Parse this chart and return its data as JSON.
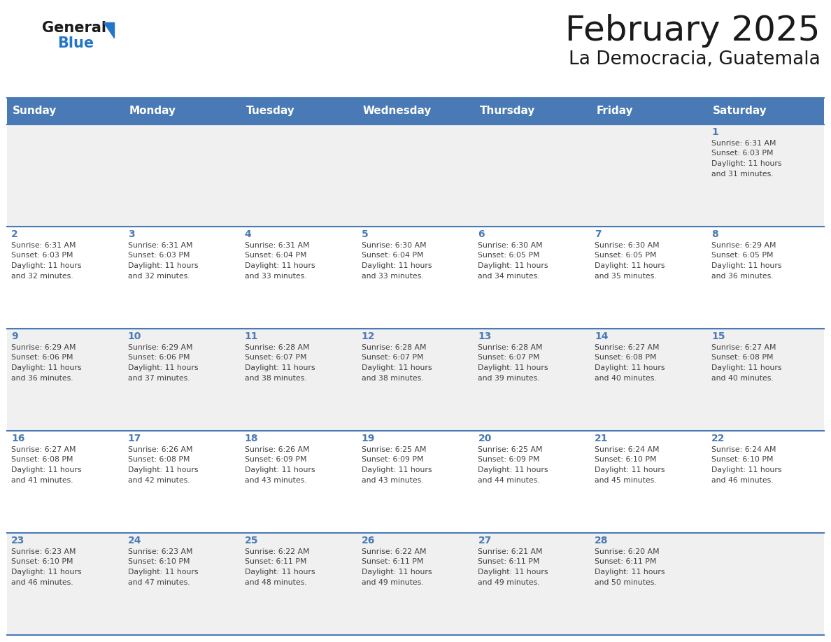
{
  "title": "February 2025",
  "subtitle": "La Democracia, Guatemala",
  "days_of_week": [
    "Sunday",
    "Monday",
    "Tuesday",
    "Wednesday",
    "Thursday",
    "Friday",
    "Saturday"
  ],
  "header_bg": "#4a7ab5",
  "header_text": "#ffffff",
  "cell_bg_odd": "#f0f0f0",
  "cell_bg_even": "#ffffff",
  "day_number_color": "#4a7ab5",
  "text_color": "#404040",
  "line_color": "#4a7ab5",
  "logo_general_color": "#1a1a1a",
  "logo_blue_color": "#2176c7",
  "logo_triangle_color": "#2176c7",
  "title_color": "#1a1a1a",
  "subtitle_color": "#1a1a1a",
  "calendar_data": [
    [
      {
        "day": null,
        "sunrise": null,
        "sunset": null,
        "daylight": null
      },
      {
        "day": null,
        "sunrise": null,
        "sunset": null,
        "daylight": null
      },
      {
        "day": null,
        "sunrise": null,
        "sunset": null,
        "daylight": null
      },
      {
        "day": null,
        "sunrise": null,
        "sunset": null,
        "daylight": null
      },
      {
        "day": null,
        "sunrise": null,
        "sunset": null,
        "daylight": null
      },
      {
        "day": null,
        "sunrise": null,
        "sunset": null,
        "daylight": null
      },
      {
        "day": 1,
        "sunrise": "6:31 AM",
        "sunset": "6:03 PM",
        "daylight": "11 hours and 31 minutes."
      }
    ],
    [
      {
        "day": 2,
        "sunrise": "6:31 AM",
        "sunset": "6:03 PM",
        "daylight": "11 hours and 32 minutes."
      },
      {
        "day": 3,
        "sunrise": "6:31 AM",
        "sunset": "6:03 PM",
        "daylight": "11 hours and 32 minutes."
      },
      {
        "day": 4,
        "sunrise": "6:31 AM",
        "sunset": "6:04 PM",
        "daylight": "11 hours and 33 minutes."
      },
      {
        "day": 5,
        "sunrise": "6:30 AM",
        "sunset": "6:04 PM",
        "daylight": "11 hours and 33 minutes."
      },
      {
        "day": 6,
        "sunrise": "6:30 AM",
        "sunset": "6:05 PM",
        "daylight": "11 hours and 34 minutes."
      },
      {
        "day": 7,
        "sunrise": "6:30 AM",
        "sunset": "6:05 PM",
        "daylight": "11 hours and 35 minutes."
      },
      {
        "day": 8,
        "sunrise": "6:29 AM",
        "sunset": "6:05 PM",
        "daylight": "11 hours and 36 minutes."
      }
    ],
    [
      {
        "day": 9,
        "sunrise": "6:29 AM",
        "sunset": "6:06 PM",
        "daylight": "11 hours and 36 minutes."
      },
      {
        "day": 10,
        "sunrise": "6:29 AM",
        "sunset": "6:06 PM",
        "daylight": "11 hours and 37 minutes."
      },
      {
        "day": 11,
        "sunrise": "6:28 AM",
        "sunset": "6:07 PM",
        "daylight": "11 hours and 38 minutes."
      },
      {
        "day": 12,
        "sunrise": "6:28 AM",
        "sunset": "6:07 PM",
        "daylight": "11 hours and 38 minutes."
      },
      {
        "day": 13,
        "sunrise": "6:28 AM",
        "sunset": "6:07 PM",
        "daylight": "11 hours and 39 minutes."
      },
      {
        "day": 14,
        "sunrise": "6:27 AM",
        "sunset": "6:08 PM",
        "daylight": "11 hours and 40 minutes."
      },
      {
        "day": 15,
        "sunrise": "6:27 AM",
        "sunset": "6:08 PM",
        "daylight": "11 hours and 40 minutes."
      }
    ],
    [
      {
        "day": 16,
        "sunrise": "6:27 AM",
        "sunset": "6:08 PM",
        "daylight": "11 hours and 41 minutes."
      },
      {
        "day": 17,
        "sunrise": "6:26 AM",
        "sunset": "6:08 PM",
        "daylight": "11 hours and 42 minutes."
      },
      {
        "day": 18,
        "sunrise": "6:26 AM",
        "sunset": "6:09 PM",
        "daylight": "11 hours and 43 minutes."
      },
      {
        "day": 19,
        "sunrise": "6:25 AM",
        "sunset": "6:09 PM",
        "daylight": "11 hours and 43 minutes."
      },
      {
        "day": 20,
        "sunrise": "6:25 AM",
        "sunset": "6:09 PM",
        "daylight": "11 hours and 44 minutes."
      },
      {
        "day": 21,
        "sunrise": "6:24 AM",
        "sunset": "6:10 PM",
        "daylight": "11 hours and 45 minutes."
      },
      {
        "day": 22,
        "sunrise": "6:24 AM",
        "sunset": "6:10 PM",
        "daylight": "11 hours and 46 minutes."
      }
    ],
    [
      {
        "day": 23,
        "sunrise": "6:23 AM",
        "sunset": "6:10 PM",
        "daylight": "11 hours and 46 minutes."
      },
      {
        "day": 24,
        "sunrise": "6:23 AM",
        "sunset": "6:10 PM",
        "daylight": "11 hours and 47 minutes."
      },
      {
        "day": 25,
        "sunrise": "6:22 AM",
        "sunset": "6:11 PM",
        "daylight": "11 hours and 48 minutes."
      },
      {
        "day": 26,
        "sunrise": "6:22 AM",
        "sunset": "6:11 PM",
        "daylight": "11 hours and 49 minutes."
      },
      {
        "day": 27,
        "sunrise": "6:21 AM",
        "sunset": "6:11 PM",
        "daylight": "11 hours and 49 minutes."
      },
      {
        "day": 28,
        "sunrise": "6:20 AM",
        "sunset": "6:11 PM",
        "daylight": "11 hours and 50 minutes."
      },
      {
        "day": null,
        "sunrise": null,
        "sunset": null,
        "daylight": null
      }
    ]
  ]
}
